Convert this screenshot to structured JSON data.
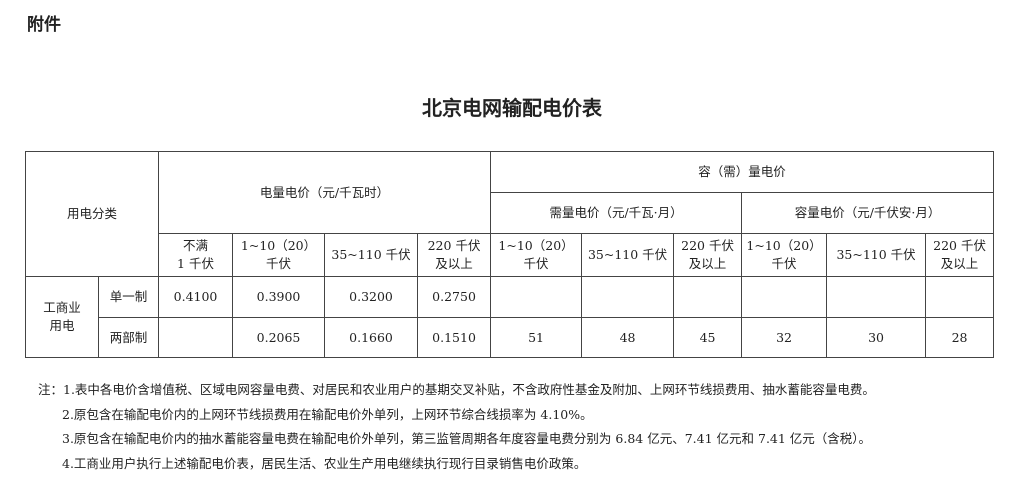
{
  "attachment_label": "附件",
  "title": "北京电网输配电价表",
  "table": {
    "category_header": "用电分类",
    "energy_header": "电量电价（元/千瓦时）",
    "capacity_group_header": "容（需）量电价",
    "demand_header": "需量电价（元/千瓦·月）",
    "capacity_header": "容量电价（元/千伏安·月）",
    "energy_cols": [
      [
        "不满",
        "1 千伏"
      ],
      [
        "1~10（20）",
        "千伏"
      ],
      [
        "35~110 千伏",
        ""
      ],
      [
        "220 千伏",
        "及以上"
      ]
    ],
    "demand_cols": [
      [
        "1~10（20）",
        "千伏"
      ],
      [
        "35~110 千伏",
        ""
      ],
      [
        "220 千伏",
        "及以上"
      ]
    ],
    "capacity_cols": [
      [
        "1~10（20）",
        "千伏"
      ],
      [
        "35~110 千伏",
        ""
      ],
      [
        "220 千伏",
        "及以上"
      ]
    ],
    "group_label": [
      "工商业",
      "用电"
    ],
    "rows": [
      {
        "label": "单一制",
        "energy": [
          "0.4100",
          "0.3900",
          "0.3200",
          "0.2750"
        ],
        "demand": [
          "",
          "",
          ""
        ],
        "capacity": [
          "",
          "",
          ""
        ]
      },
      {
        "label": "两部制",
        "energy": [
          "",
          "0.2065",
          "0.1660",
          "0.1510"
        ],
        "demand": [
          "51",
          "48",
          "45"
        ],
        "capacity": [
          "32",
          "30",
          "28"
        ]
      }
    ]
  },
  "notes": [
    "注：1.表中各电价含增值税、区域电网容量电费、对居民和农业用户的基期交叉补贴，不含政府性基金及附加、上网环节线损费用、抽水蓄能容量电费。",
    "2.原包含在输配电价内的上网环节线损费用在输配电价外单列，上网环节综合线损率为 4.10%。",
    "3.原包含在输配电价内的抽水蓄能容量电费在输配电价外单列，第三监管周期各年度容量电费分别为 6.84 亿元、7.41 亿元和 7.41 亿元（含税）。",
    "4.工商业用户执行上述输配电价表，居民生活、农业生产用电继续执行现行目录销售电价政策。"
  ]
}
